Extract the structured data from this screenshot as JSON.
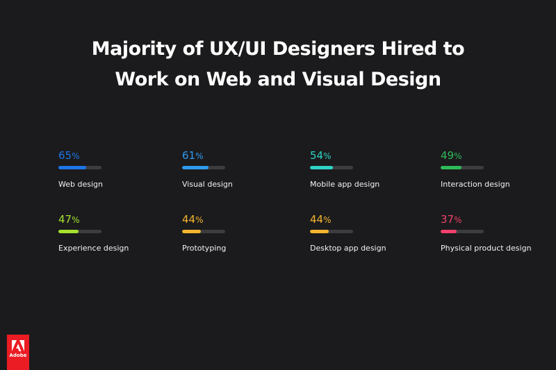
{
  "title_line1": "Majority of UX/UI Designers Hired to",
  "title_line2": "Work on Web and Visual Design",
  "chart_data": {
    "type": "bar",
    "title": "Majority of UX/UI Designers Hired to Work on Web and Visual Design",
    "categories": [
      "Web design",
      "Visual design",
      "Mobile app design",
      "Interaction design",
      "Experience design",
      "Prototyping",
      "Desktop app design",
      "Physical product design"
    ],
    "values": [
      65,
      61,
      54,
      49,
      47,
      44,
      44,
      37
    ],
    "unit": "%",
    "colors": [
      "#1e76e8",
      "#2f9bee",
      "#2ed4c6",
      "#2dbb5a",
      "#a6e22e",
      "#f5b52e",
      "#f5b52e",
      "#f0406b"
    ],
    "ylim": [
      0,
      100
    ],
    "grid": false
  },
  "logo": {
    "text": "Adobe",
    "color": "#ec1c24"
  }
}
